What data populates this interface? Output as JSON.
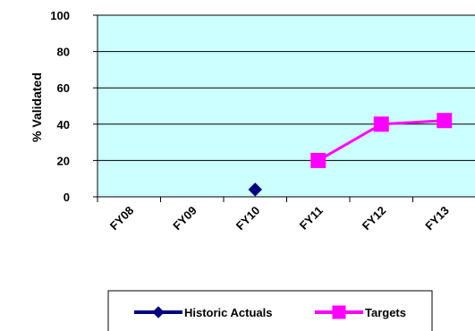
{
  "chart_data": {
    "type": "line",
    "categories": [
      "FY08",
      "FY09",
      "FY10",
      "FY11",
      "FY12",
      "FY13"
    ],
    "ylabel": "% Validated",
    "xlabel": "",
    "ylim": [
      0,
      100
    ],
    "yticks": [
      0,
      20,
      40,
      60,
      80,
      100
    ],
    "grid": true,
    "legend": "bottom",
    "plot_background": "#ccffff",
    "series": [
      {
        "name": "Historic Actuals",
        "color": "#000080",
        "marker": "diamond",
        "values": [
          null,
          null,
          4,
          null,
          null,
          null
        ]
      },
      {
        "name": "Targets",
        "color": "#ff00ff",
        "marker": "square",
        "values": [
          null,
          null,
          null,
          20,
          40,
          42
        ]
      }
    ]
  }
}
